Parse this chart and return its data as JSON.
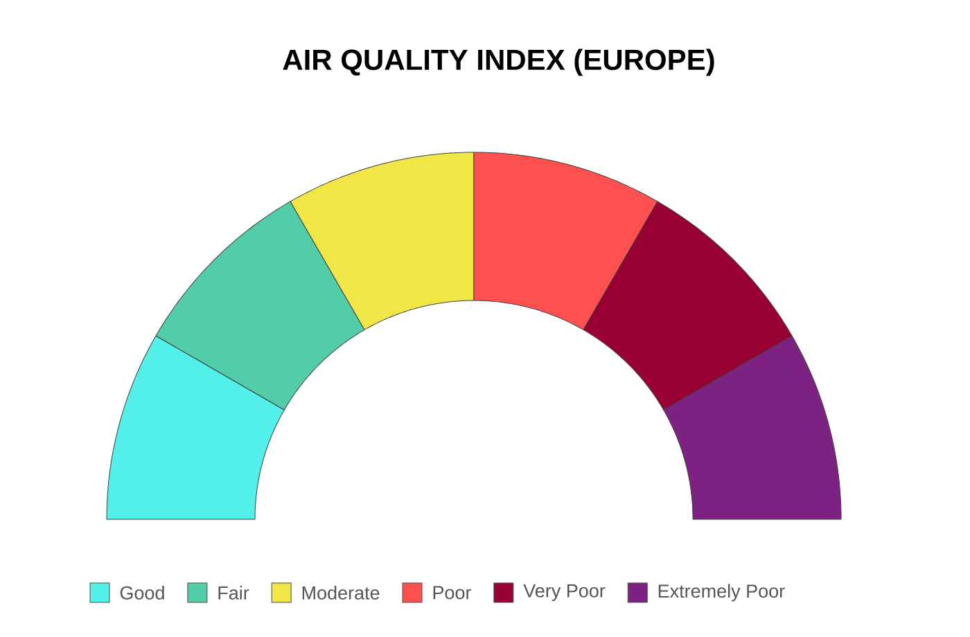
{
  "chart_data": {
    "type": "donut",
    "title": "AIR QUALITY INDEX (EUROPE)",
    "categories": [
      "Good",
      "Fair",
      "Moderate",
      "Poor",
      "Very Poor",
      "Extremely Poor"
    ],
    "values": [
      16.67,
      16.67,
      16.67,
      16.67,
      16.67,
      16.67
    ],
    "colors": [
      "#52f0e8",
      "#52cca9",
      "#f0e645",
      "#ff5050",
      "#990033",
      "#7d2282"
    ],
    "legend": "bottom"
  }
}
